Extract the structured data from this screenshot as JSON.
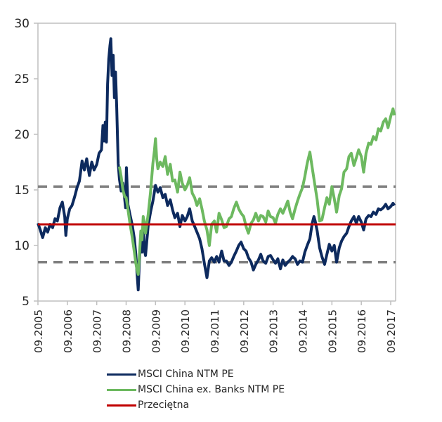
{
  "chart_data": {
    "type": "line",
    "title": "",
    "xlabel": "",
    "ylabel": "",
    "ylim": [
      5,
      30
    ],
    "yticks": [
      "5",
      "10",
      "15",
      "20",
      "25",
      "30"
    ],
    "ytick_values": [
      5,
      10,
      15,
      20,
      25,
      30
    ],
    "xlim": [
      2005.67,
      2017.8
    ],
    "xticks": [
      "09.2005",
      "09.2006",
      "09.2007",
      "09.2008",
      "09.2009",
      "09.2010",
      "09.2011",
      "09.2012",
      "09.2013",
      "09.2014",
      "09.2015",
      "09.2016",
      "09.2017"
    ],
    "xtick_values": [
      2005.67,
      2006.67,
      2007.67,
      2008.67,
      2009.67,
      2010.67,
      2011.67,
      2012.67,
      2013.67,
      2014.67,
      2015.67,
      2016.67,
      2017.67
    ],
    "grid": false,
    "legend_position": "bottom",
    "series": [
      {
        "name": "MSCI China NTM PE",
        "color": "#0d2a5e",
        "style": "solid",
        "points": [
          [
            2005.67,
            12.0
          ],
          [
            2005.75,
            11.4
          ],
          [
            2005.83,
            10.7
          ],
          [
            2005.92,
            11.6
          ],
          [
            2006.0,
            11.2
          ],
          [
            2006.08,
            11.9
          ],
          [
            2006.17,
            11.6
          ],
          [
            2006.25,
            12.4
          ],
          [
            2006.33,
            12.2
          ],
          [
            2006.42,
            13.4
          ],
          [
            2006.5,
            13.9
          ],
          [
            2006.58,
            12.6
          ],
          [
            2006.62,
            10.9
          ],
          [
            2006.67,
            12.4
          ],
          [
            2006.75,
            13.3
          ],
          [
            2006.83,
            13.6
          ],
          [
            2006.92,
            14.4
          ],
          [
            2007.0,
            15.2
          ],
          [
            2007.08,
            15.8
          ],
          [
            2007.17,
            17.6
          ],
          [
            2007.25,
            16.8
          ],
          [
            2007.33,
            17.8
          ],
          [
            2007.42,
            16.3
          ],
          [
            2007.5,
            17.5
          ],
          [
            2007.58,
            16.8
          ],
          [
            2007.67,
            17.3
          ],
          [
            2007.75,
            18.3
          ],
          [
            2007.83,
            18.6
          ],
          [
            2007.88,
            20.8
          ],
          [
            2007.92,
            19.4
          ],
          [
            2007.96,
            21.1
          ],
          [
            2008.0,
            19.3
          ],
          [
            2008.04,
            24.5
          ],
          [
            2008.08,
            26.8
          ],
          [
            2008.12,
            28.0
          ],
          [
            2008.15,
            28.6
          ],
          [
            2008.19,
            25.3
          ],
          [
            2008.23,
            27.1
          ],
          [
            2008.27,
            23.3
          ],
          [
            2008.31,
            25.6
          ],
          [
            2008.35,
            22.4
          ],
          [
            2008.4,
            17.4
          ],
          [
            2008.44,
            16.0
          ],
          [
            2008.5,
            14.9
          ],
          [
            2008.56,
            15.6
          ],
          [
            2008.62,
            14.2
          ],
          [
            2008.65,
            13.4
          ],
          [
            2008.68,
            17.0
          ],
          [
            2008.73,
            13.7
          ],
          [
            2008.8,
            12.8
          ],
          [
            2008.88,
            11.8
          ],
          [
            2008.95,
            10.6
          ],
          [
            2009.0,
            9.2
          ],
          [
            2009.04,
            7.5
          ],
          [
            2009.08,
            6.0
          ],
          [
            2009.12,
            8.5
          ],
          [
            2009.17,
            10.9
          ],
          [
            2009.21,
            9.4
          ],
          [
            2009.25,
            11.6
          ],
          [
            2009.29,
            9.6
          ],
          [
            2009.33,
            9.1
          ],
          [
            2009.42,
            11.8
          ],
          [
            2009.5,
            13.0
          ],
          [
            2009.58,
            14.0
          ],
          [
            2009.67,
            15.4
          ],
          [
            2009.75,
            14.8
          ],
          [
            2009.83,
            15.2
          ],
          [
            2009.92,
            14.3
          ],
          [
            2010.0,
            14.6
          ],
          [
            2010.08,
            13.6
          ],
          [
            2010.17,
            14.1
          ],
          [
            2010.25,
            13.2
          ],
          [
            2010.33,
            12.5
          ],
          [
            2010.42,
            12.9
          ],
          [
            2010.5,
            11.7
          ],
          [
            2010.58,
            12.7
          ],
          [
            2010.67,
            12.2
          ],
          [
            2010.75,
            12.6
          ],
          [
            2010.83,
            13.3
          ],
          [
            2010.92,
            12.2
          ],
          [
            2011.0,
            11.7
          ],
          [
            2011.08,
            11.2
          ],
          [
            2011.17,
            10.6
          ],
          [
            2011.25,
            9.7
          ],
          [
            2011.33,
            8.4
          ],
          [
            2011.42,
            7.1
          ],
          [
            2011.5,
            8.6
          ],
          [
            2011.58,
            8.9
          ],
          [
            2011.67,
            8.5
          ],
          [
            2011.75,
            9.0
          ],
          [
            2011.83,
            8.5
          ],
          [
            2011.92,
            9.5
          ],
          [
            2012.0,
            8.6
          ],
          [
            2012.08,
            8.6
          ],
          [
            2012.17,
            8.2
          ],
          [
            2012.25,
            8.5
          ],
          [
            2012.33,
            9.0
          ],
          [
            2012.42,
            9.5
          ],
          [
            2012.5,
            10.0
          ],
          [
            2012.58,
            10.3
          ],
          [
            2012.67,
            9.7
          ],
          [
            2012.75,
            9.5
          ],
          [
            2012.83,
            8.9
          ],
          [
            2012.92,
            8.5
          ],
          [
            2013.0,
            7.8
          ],
          [
            2013.08,
            8.3
          ],
          [
            2013.17,
            8.7
          ],
          [
            2013.25,
            9.2
          ],
          [
            2013.33,
            8.6
          ],
          [
            2013.42,
            8.4
          ],
          [
            2013.5,
            9.0
          ],
          [
            2013.58,
            9.1
          ],
          [
            2013.67,
            8.7
          ],
          [
            2013.75,
            8.4
          ],
          [
            2013.83,
            8.8
          ],
          [
            2013.92,
            7.9
          ],
          [
            2014.0,
            8.7
          ],
          [
            2014.08,
            8.2
          ],
          [
            2014.17,
            8.5
          ],
          [
            2014.25,
            8.7
          ],
          [
            2014.33,
            9.0
          ],
          [
            2014.42,
            8.8
          ],
          [
            2014.5,
            8.3
          ],
          [
            2014.58,
            8.6
          ],
          [
            2014.67,
            8.5
          ],
          [
            2014.75,
            9.4
          ],
          [
            2014.83,
            10.0
          ],
          [
            2014.92,
            10.6
          ],
          [
            2015.0,
            12.0
          ],
          [
            2015.06,
            12.6
          ],
          [
            2015.1,
            12.2
          ],
          [
            2015.17,
            11.3
          ],
          [
            2015.25,
            9.8
          ],
          [
            2015.33,
            9.0
          ],
          [
            2015.42,
            8.3
          ],
          [
            2015.5,
            9.2
          ],
          [
            2015.58,
            10.1
          ],
          [
            2015.67,
            9.5
          ],
          [
            2015.75,
            10.0
          ],
          [
            2015.83,
            8.5
          ],
          [
            2015.92,
            9.8
          ],
          [
            2016.0,
            10.4
          ],
          [
            2016.08,
            10.8
          ],
          [
            2016.17,
            11.1
          ],
          [
            2016.25,
            11.7
          ],
          [
            2016.33,
            12.2
          ],
          [
            2016.42,
            12.6
          ],
          [
            2016.5,
            12.0
          ],
          [
            2016.58,
            12.6
          ],
          [
            2016.67,
            12.1
          ],
          [
            2016.75,
            11.4
          ],
          [
            2016.83,
            12.4
          ],
          [
            2016.92,
            12.7
          ],
          [
            2017.0,
            12.6
          ],
          [
            2017.08,
            13.0
          ],
          [
            2017.17,
            12.8
          ],
          [
            2017.25,
            13.3
          ],
          [
            2017.33,
            13.2
          ],
          [
            2017.42,
            13.4
          ],
          [
            2017.5,
            13.7
          ],
          [
            2017.58,
            13.3
          ],
          [
            2017.67,
            13.5
          ],
          [
            2017.75,
            13.8
          ],
          [
            2017.8,
            13.6
          ]
        ]
      },
      {
        "name": "MSCI China ex. Banks NTM PE",
        "color": "#6db960",
        "style": "solid",
        "points": [
          [
            2008.44,
            17.1
          ],
          [
            2008.5,
            16.2
          ],
          [
            2008.56,
            15.0
          ],
          [
            2008.62,
            14.4
          ],
          [
            2008.67,
            14.3
          ],
          [
            2008.73,
            13.3
          ],
          [
            2008.8,
            12.0
          ],
          [
            2008.88,
            10.7
          ],
          [
            2008.95,
            9.4
          ],
          [
            2009.0,
            8.4
          ],
          [
            2009.04,
            7.8
          ],
          [
            2009.08,
            7.4
          ],
          [
            2009.12,
            9.0
          ],
          [
            2009.17,
            11.3
          ],
          [
            2009.21,
            10.5
          ],
          [
            2009.25,
            12.6
          ],
          [
            2009.29,
            12.1
          ],
          [
            2009.33,
            11.1
          ],
          [
            2009.42,
            12.8
          ],
          [
            2009.5,
            14.8
          ],
          [
            2009.58,
            17.4
          ],
          [
            2009.63,
            18.5
          ],
          [
            2009.67,
            19.6
          ],
          [
            2009.71,
            17.8
          ],
          [
            2009.75,
            16.9
          ],
          [
            2009.83,
            17.5
          ],
          [
            2009.92,
            17.1
          ],
          [
            2010.0,
            18.0
          ],
          [
            2010.08,
            16.4
          ],
          [
            2010.17,
            17.3
          ],
          [
            2010.25,
            15.8
          ],
          [
            2010.33,
            15.9
          ],
          [
            2010.42,
            14.8
          ],
          [
            2010.5,
            16.6
          ],
          [
            2010.58,
            15.6
          ],
          [
            2010.67,
            15.0
          ],
          [
            2010.75,
            15.4
          ],
          [
            2010.83,
            16.1
          ],
          [
            2010.92,
            14.7
          ],
          [
            2011.0,
            14.3
          ],
          [
            2011.08,
            13.6
          ],
          [
            2011.17,
            14.2
          ],
          [
            2011.25,
            13.3
          ],
          [
            2011.33,
            12.2
          ],
          [
            2011.42,
            11.4
          ],
          [
            2011.5,
            10.0
          ],
          [
            2011.58,
            11.9
          ],
          [
            2011.67,
            12.2
          ],
          [
            2011.75,
            11.2
          ],
          [
            2011.83,
            12.9
          ],
          [
            2011.92,
            12.3
          ],
          [
            2012.0,
            11.6
          ],
          [
            2012.08,
            11.7
          ],
          [
            2012.17,
            12.4
          ],
          [
            2012.25,
            12.6
          ],
          [
            2012.33,
            13.3
          ],
          [
            2012.42,
            13.9
          ],
          [
            2012.5,
            13.3
          ],
          [
            2012.58,
            12.9
          ],
          [
            2012.67,
            12.6
          ],
          [
            2012.75,
            11.7
          ],
          [
            2012.83,
            11.1
          ],
          [
            2012.92,
            12.0
          ],
          [
            2013.0,
            12.3
          ],
          [
            2013.08,
            12.9
          ],
          [
            2013.17,
            12.2
          ],
          [
            2013.25,
            12.7
          ],
          [
            2013.33,
            12.6
          ],
          [
            2013.42,
            12.1
          ],
          [
            2013.5,
            13.1
          ],
          [
            2013.58,
            12.6
          ],
          [
            2013.67,
            12.5
          ],
          [
            2013.75,
            12.0
          ],
          [
            2013.83,
            12.8
          ],
          [
            2013.92,
            13.3
          ],
          [
            2014.0,
            12.9
          ],
          [
            2014.08,
            13.4
          ],
          [
            2014.17,
            14.0
          ],
          [
            2014.25,
            13.0
          ],
          [
            2014.33,
            12.4
          ],
          [
            2014.42,
            13.3
          ],
          [
            2014.5,
            14.0
          ],
          [
            2014.58,
            14.6
          ],
          [
            2014.67,
            15.2
          ],
          [
            2014.75,
            16.2
          ],
          [
            2014.83,
            17.4
          ],
          [
            2014.92,
            18.4
          ],
          [
            2015.0,
            17.0
          ],
          [
            2015.08,
            15.6
          ],
          [
            2015.17,
            14.1
          ],
          [
            2015.25,
            12.2
          ],
          [
            2015.33,
            12.3
          ],
          [
            2015.42,
            13.4
          ],
          [
            2015.5,
            14.3
          ],
          [
            2015.58,
            13.7
          ],
          [
            2015.67,
            15.3
          ],
          [
            2015.75,
            14.2
          ],
          [
            2015.83,
            13.0
          ],
          [
            2015.92,
            14.5
          ],
          [
            2016.0,
            15.1
          ],
          [
            2016.08,
            16.6
          ],
          [
            2016.17,
            16.9
          ],
          [
            2016.25,
            18.0
          ],
          [
            2016.33,
            18.3
          ],
          [
            2016.42,
            17.2
          ],
          [
            2016.5,
            17.9
          ],
          [
            2016.58,
            18.6
          ],
          [
            2016.67,
            18.0
          ],
          [
            2016.75,
            16.6
          ],
          [
            2016.83,
            18.3
          ],
          [
            2016.92,
            19.2
          ],
          [
            2017.0,
            19.1
          ],
          [
            2017.08,
            19.8
          ],
          [
            2017.17,
            19.5
          ],
          [
            2017.25,
            20.5
          ],
          [
            2017.33,
            20.3
          ],
          [
            2017.42,
            21.1
          ],
          [
            2017.5,
            21.4
          ],
          [
            2017.58,
            20.6
          ],
          [
            2017.67,
            21.6
          ],
          [
            2017.75,
            22.3
          ],
          [
            2017.8,
            21.7
          ]
        ]
      },
      {
        "name": "Przeciętna",
        "color": "#c00000",
        "style": "solid",
        "value": 11.9
      }
    ],
    "reference_lines": [
      {
        "name": "upper band",
        "value": 15.3,
        "color": "#808080",
        "style": "dashed"
      },
      {
        "name": "lower band",
        "value": 8.5,
        "color": "#808080",
        "style": "dashed"
      }
    ]
  },
  "legend": {
    "items": [
      {
        "label": "MSCI China NTM PE",
        "color": "#0d2a5e"
      },
      {
        "label": "MSCI China ex. Banks NTM PE",
        "color": "#6db960"
      },
      {
        "label": "Przeciętna",
        "color": "#c00000"
      }
    ]
  }
}
